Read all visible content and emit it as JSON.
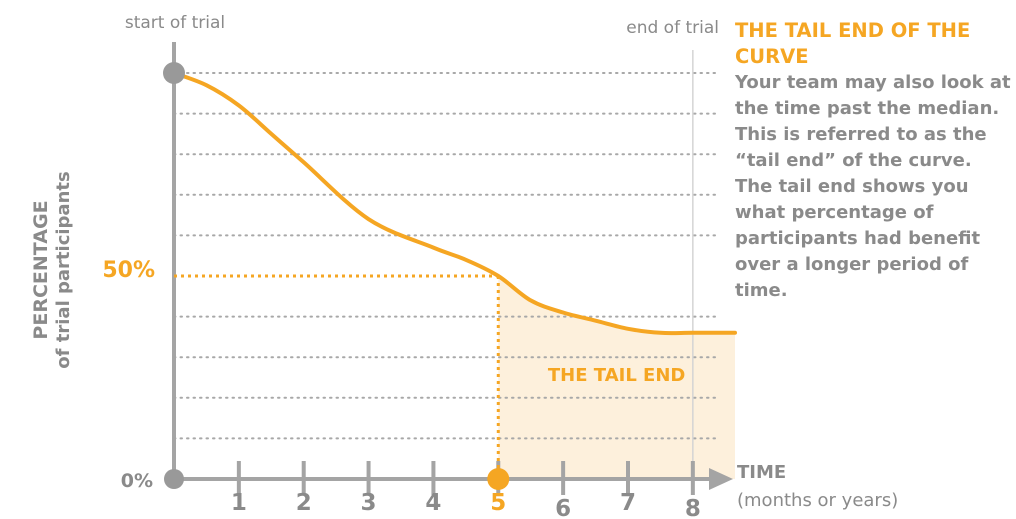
{
  "colors": {
    "accent": "#f5a623",
    "axis": "#a4a4a4",
    "text": "#8a8a8a",
    "shade": "#fdf0dc",
    "grid": "#a8a8a8"
  },
  "chart_data": {
    "type": "line",
    "ylabel_main": "PERCENTAGE",
    "ylabel_sub": "of trial participants",
    "xlabel_main": "TIME",
    "xlabel_sub": "(months or years)",
    "xlim": [
      0,
      8.65
    ],
    "ylim": [
      0,
      100
    ],
    "x_ticks": [
      "1",
      "2",
      "3",
      "4",
      "5",
      "6",
      "7",
      "8"
    ],
    "y_ticks": [
      "0%",
      "50%"
    ],
    "start_label": "start of trial",
    "end_label": "end of trial",
    "end_x": 8,
    "median": {
      "x": 5,
      "y": 50
    },
    "shaded_region_label": "THE TAIL END",
    "grid": "horizontal dotted",
    "series": [
      {
        "x": [
          0,
          0.5,
          1,
          1.5,
          2,
          3,
          4,
          4.5,
          5,
          5.5,
          6,
          6.5,
          7,
          7.5,
          8,
          8.65
        ],
        "y": [
          100,
          97,
          92,
          85,
          78,
          64,
          57,
          54,
          50,
          44,
          41,
          39,
          37,
          36,
          36,
          36
        ]
      }
    ]
  },
  "side_panel": {
    "title": "THE TAIL END OF THE CURVE",
    "body": "Your team may also look at the time past the median. This is referred to as the “tail end” of the curve. The tail end shows you what percentage of participants had benefit over a longer period of time."
  }
}
